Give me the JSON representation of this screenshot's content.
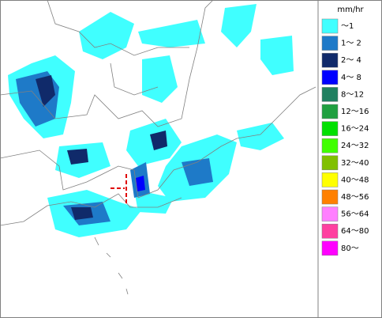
{
  "legend": {
    "unit": "mm/hr",
    "items": [
      {
        "label": "～1",
        "color": "#40ffff"
      },
      {
        "label": "1～ 2",
        "color": "#1e7ac8"
      },
      {
        "label": "2～ 4",
        "color": "#102a6a"
      },
      {
        "label": "4～ 8",
        "color": "#0000ff"
      },
      {
        "label": "8～12",
        "color": "#208060"
      },
      {
        "label": "12～16",
        "color": "#20a040"
      },
      {
        "label": "16～24",
        "color": "#00e000"
      },
      {
        "label": "24～32",
        "color": "#40ff00"
      },
      {
        "label": "32～40",
        "color": "#80c000"
      },
      {
        "label": "40～48",
        "color": "#ffff00"
      },
      {
        "label": "48～56",
        "color": "#ff8000"
      },
      {
        "label": "56～64",
        "color": "#ff80ff"
      },
      {
        "label": "64～80",
        "color": "#ff40a0"
      },
      {
        "label": "80～",
        "color": "#ff00ff"
      }
    ]
  }
}
